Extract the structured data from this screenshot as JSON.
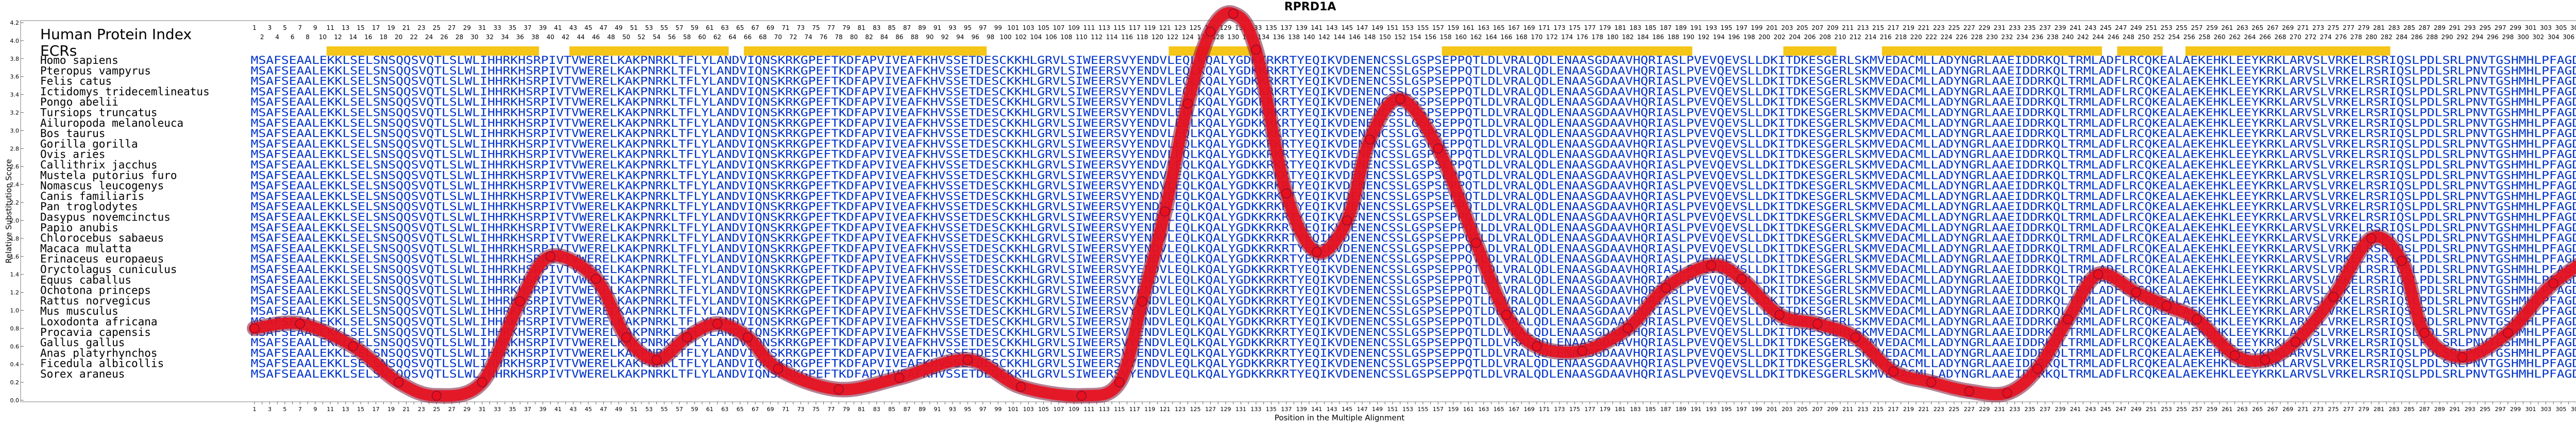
{
  "chart_data": {
    "type": "line",
    "title": "RPRD1A",
    "xlabel": "Position in the Multiple Alignment",
    "ylabel": "Relative Substitution Score",
    "ylim": [
      0,
      4.2
    ],
    "xlim": [
      1,
      312
    ],
    "y_ticks": [
      "0.0",
      "0.2",
      "0.4",
      "0.6",
      "0.8",
      "1.0",
      "1.2",
      "1.4",
      "1.6",
      "1.8",
      "2.0",
      "2.2",
      "2.4",
      "2.6",
      "2.8",
      "3.0",
      "3.2",
      "3.4",
      "3.6",
      "3.8",
      "4.0",
      "4.2"
    ],
    "grid": false,
    "legend": "none",
    "line_color": "#e8101e",
    "index_header": "Human Protein Index",
    "ecr_label": "ECRs",
    "ecr_color": "#f5c518",
    "ecr_regions": [
      [
        11,
        38
      ],
      [
        43,
        63
      ],
      [
        66,
        97
      ],
      [
        122,
        133
      ],
      [
        158,
        190
      ],
      [
        203,
        209
      ],
      [
        216,
        244
      ],
      [
        247,
        252
      ],
      [
        256,
        282
      ]
    ],
    "series": [
      {
        "x": [
          1,
          7,
          14,
          20,
          25,
          31,
          36,
          40,
          46,
          50,
          54,
          58,
          62,
          66,
          70,
          78,
          86,
          95,
          102,
          110,
          115,
          118,
          121,
          124,
          127,
          130,
          133,
          137,
          141,
          145,
          148,
          152,
          157,
          162,
          166,
          170,
          176,
          182,
          187,
          193,
          197,
          202,
          207,
          212,
          217,
          222,
          227,
          232,
          236,
          240,
          244,
          249,
          253,
          257,
          262,
          266,
          270,
          275,
          280,
          284,
          287,
          292,
          298,
          304,
          312
        ],
        "y": [
          0.8,
          0.85,
          0.6,
          0.2,
          0.05,
          0.2,
          1.1,
          1.6,
          1.35,
          0.7,
          0.45,
          0.7,
          0.85,
          0.7,
          0.35,
          0.12,
          0.25,
          0.45,
          0.15,
          0.05,
          0.2,
          1.1,
          2.1,
          3.3,
          4.1,
          4.3,
          3.9,
          2.3,
          1.65,
          2.0,
          2.9,
          3.35,
          2.8,
          1.75,
          0.95,
          0.6,
          0.55,
          0.8,
          1.25,
          1.5,
          1.35,
          0.95,
          0.85,
          0.7,
          0.32,
          0.2,
          0.1,
          0.08,
          0.35,
          0.9,
          1.4,
          1.2,
          1.05,
          0.9,
          0.5,
          0.45,
          0.65,
          1.15,
          1.8,
          1.55,
          0.75,
          0.48,
          0.75,
          1.3,
          1.75
        ]
      }
    ],
    "species": [
      "Homo sapiens",
      "Pteropus vampyrus",
      "Felis catus",
      "Ictidomys tridecemlineatus",
      "Pongo abelii",
      "Tursiops truncatus",
      "Ailuropoda melanoleuca",
      "Bos taurus",
      "Gorilla gorilla",
      "Ovis aries",
      "Callithrix jacchus",
      "Mustela putorius furo",
      "Nomascus leucogenys",
      "Canis familiaris",
      "Pan troglodytes",
      "Dasypus novemcinctus",
      "Papio anubis",
      "Chlorocebus sabaeus",
      "Macaca mulatta",
      "Erinaceus europaeus",
      "Oryctolagus cuniculus",
      "Equus caballus",
      "Ochotona princeps",
      "Rattus norvegicus",
      "Mus musculus",
      "Loxodonta africana",
      "Procavia capensis",
      "Gallus gallus",
      "Anas platyrhynchos",
      "Ficedula albicollis",
      "Sorex araneus"
    ],
    "sequences": [
      "MSAFSEAALEKKLSELSNSQQSVQTLSLWLIHHRKHSRPIVTVWEREL KAKPNRKLTFLYLANDVIQNSKRKGPEFTKDFAPVIVEAFKHVSSETDESCKKHLGRVLSIWEERSVYENDVLEQLKQALYGDKKRKRTYEQIKVDENENCSSLGSPSEPPQTLDLVRALQDLENAASGDAAVHQRIASLPVEVQEVSLLDKITDKESGERLSKMVEDACMLLADYNGRLAAEIDDRKQLTRMLADFLRCQKEALAEKEHKLEEYKRKLARVSLVRKELRSRIQSLPDLSRLPNVTGSHMHLPFAGDIYSED",
      "MSAFSEAALEKKLSELSNSQQSVQTLSLWLIHHRKHSRPIVTVWEREL KAKPNRKLTFLYLANDVIQNSKRKGPEFTKDFAPVIVEAFKHVSSETDESCKKHLGRVLSIWEERSVYENDVLEQLKQALYGDKKRKRTYEQIKVDENENCSSLGSPSEPPQTLDLVRALQDLENAASGDAAVHQRIASLPVEVQEVSLLDKITDKESGERLSKMVEDACMLLADYNGRLAAEIDDRKQLTRMLADFLRCQKEALAEKEHKLEEYKRKLARVSLVRKELRSRIQSLPDLSRLPNVTGSHMHLPFAGDIYSED",
      "MSAFSEAALEKKLSELSNSQQSVQTLSLWLIHHRKHSRPIVTVWEREL KAKPNRKLTFLYLANDVIQNSKRKGPEFTKDFAPVIVEAFKHVSSETDESCKKHLGRVLSIWEERSVYENDVLEQLKQALYGDKKRKRTYEQIKVDENENCSSLGSPSEPPQTLDLVRALQDLENAASGDAAVHQRIASLPVEVQEVSLLDKITDKESGERLSKMVEDACMLLADYNGRLAAEIDDRKQLTRMLADFLRCQKEALAEKEHKLEEYKRKLARVSLVRKELRSRIQSLPDLSRLPNVTGSHMHLPFAGDIYSED",
      "MSAFSEAALEKKLSELSNSQQSVQTLSLWLIHHRKHSRPIVTVWEREL KAKPNRKLTFLYLANDVIQNSKRKGPEFTKDFAPVIVEAFKHVSSETDESCKKHLGRVLSIWEERSVYENDVLEQLKQALYGDKKRKRTYEQIKVDENENCSSLGSPSEPPQTLDLVRALQDLENAASGDAAVHQRIASLPVEVQEVSLLDKITDKESGERLSKMVEDACMLLADYNGRLAAEIDDRKQLTRMLADFLRCQKEALAEKEHKLEEYKRKLARVSLVRKELRSRIQSLPDLSRLPNVTGSHMHLPFAGDIYSED",
      "MSAFSEAALEKKLSELSNSQQSVQTLSLWLIHHRKHSRPIVTVWEREL KAKPNRKLTFLYLANDVIQNSKRKGPEFTKDFAPVIVEAFKHVSSETDESCKKHLGRVLSIWEERSVYENDVLEQLKQALYGDKKRKRTYEQIKVDENENCSSLGSPSEPPQTLDLVRALQDLENAASGDAAVHQRIASLPVEVQEVSLLDKITDKESGERLSKMVEDACMLLADYNGRLAAEIDDRKQLTRMLADFLRCQKEALAEKEHKLEEYKRKLARVSLVRKELRSRIQSLPDLSRLPNVTGSHMHLPFAGDIYSED",
      "MSAFSEAALEKKLSELSNSQQSVQTLSLWLIHHRKHSRPIVTVWEREL KAKPNRKLTFLYLANDVIQNSKRKGPEFTKDFAPVIVEAFKHVSSETDESCKKHLGRVLSIWEERSVYENDVLEQLKQALYGDKKRKRTYEQIKVDENENCSSLGSPSEPPQTLDLVRALQDLENAASGDAAVHQRIASLPVEVQEVSLLDKITDKESGERLSKMVEDACMLLADYNGRLAAEIDDRKQLTRMLADFLRCQKEALAEKEHKLEEYKRKLARVSLVRKELRSRIQSLPDLSRLPNVTGSHMHLPFAGDIYSED",
      "MSAFSEAALEKKLSELSNSQQSVQTLSLWLIHHRKHSRPIVTVWEREL KAKPNRKLTFLYLANDVIQNSKRKGPEFTKDFAPVIVEAFKHVSSETDESCKKHLGRVLSIWEERSVYENDVLEQLKQALYGDKKRKRTYEQIKVDENENCSSLGSPSEPPQTLDLVRALQDLENAASGDAAVHQRIASLPVEVQEVSLLDKITDKESGERLSKMVEDACMLLADYNGRLAAEIDDRKQLTRMLADFLRCQKEALAEKEHKLEEYKRKLARVSLVRKELRSRIQSLPDLSRLPNVTGSHMHLPFAGDIYSED",
      "MSAFSEAALEKKLSELSNSQQSVQTLSLWLIHHRKHSRPIVTVWEREL KAKPNRKLTFLYLANDVIQNSKRKGPEFTKDFAPVIVEAFKHVSSETDESCKKHLGRVLSIWEERSVYENDVLEQLKQALYGDKKRKRTYEQIKVDENENCSSLGSPSEPPQTLDLVRALQDLENAASGDAAVHQRIASLPVEVQEVSLLDKITDKESGERLSKMVEDACMLLADYNGRLAAEIDDRKQLTRMLADFLRCQKEALAEKEHKLEEYKRKLARVSLVRKELRSRIQSLPDLSRLPNVTGSHMHLPFAGDIYSED",
      "MSAFSEAALEKKLSELSNSQQSVQTLSLWLIHHRKHSRPIVTVWEREL KAKPNRKLTFLYLANDVIQNSKRKGPEFTKDFAPVIVEAFKHVSSETDESCKKHLGRVLSIWEERSVYENDVLEQLKQALYGDKKRKRTYEQIKVDENENCSSLGSPSEPPQTLDLVRALQDLENAASGDAAVHQRIASLPVEVQEVSLLDKITDKESGERLSKMVEDACMLLADYNGRLAAEIDDRKQLTRMLADFLRCQKEALAEKEHKLEEYKRKLARVSLVRKELRSRIQSLPDLSRLPNVTGSHMHLPFAGDIYSED",
      "MSAFSEAALEKKLSELSNSQQSVQTLSLWLIHHRKHSRPIVTVWEREL KAKPNRKLTFLYLANDVIQNSKRKGPEFTKDFAPVIVEAFKHVSSETDESCKKHLGRVLSIWEERSVYENDVLEQLKQALYGDKKRKRTYEQIKVDENENCSSLGSPSEPPQTLDLVRALQDLENAASGDAAVHQRIASLPVEVQEVSLLDKITDKESGERLSKMVEDACMLLADYNGRLAAEIDDRKQLTRMLADFLRCQKEALAEKEHKLEEYKRKLARVSLVRKELRSRIQSLPDLSRLPNVTGSHMHLPFAGDIYSED",
      "MSAFSEAALEKKLSELSNSQQSVQTLSLWLIHHRKHSRPIVTVWEREL KAKPNRKLTFLYLANDVIQNSKRKGPEFTKDFAPVIVEAFKHVSSETDESCKKHLGRVLSIWEERSVYENDVLEQLKQALYGDKKRKRTYEQIKVDENENCSSLGSPSEPPQTLDLVRALQDLENAASGDAAVHQRIASLPVEVQEVSLLDKITDKESGERLSKMVEDACMLLADYNGRLAAEIDDRKQLTRMLADFLRCQKEALAEKEHKLEEYKRKLARVSLVRKELRSRIQSLPDLSRLPNVTGSHMHLPFAGDIYSED",
      "MSAFSEAALEKKLSELSNSQQSVQTLSLWLIHHRKHSRPIVTVWEREL KAKPNRKLTFLYLANDVIQNSKRKGPEFTKDFAPVIVEAFKHVSSETDESCKKHLGRVLSIWEERSVYENDVLEQLKQALYGDKKRKRTYEQIKVDENENCSSLGSPSEPPQTLDLVRALQDLENAASGDAAVHQRIASLPVEVQEVSLLDKITDKESGERLSKMVEDACMLLADYNGRLAAEIDDRKQLTRMLADFLRCQKEALAEKEHKLEEYKRKLARVSLVRKELRSRIQSLPDLSRLPNVTGSHMHLPFAGDIYSED",
      "MSAFSEAALEKKLSELSNSQQSVQTLSLWLIHHRKHSRPIVTVWEREL KAKPNRKLTFLYLANDVIQNSKRKGPEFTKDFAPVIVEAFKHVSSETDESCKKHLGRVLSIWEERSVYENDVLEQLKQALYGDKKRKRTYEQIKVDENENCSSLGSPSEPPQTLDLVRALQDLENAASGDAAVHQRIASLPVEVQEVSLLDKITDKESGERLSKMVEDACMLLADYNGRLAAEIDDRKQLTRMLADFLRCQKEALAEKEHKLEEYKRKLARVSLVRKELRSRIQSLPDLSRLPNVTGSHMHLPFAGDIYSED",
      "MSAFSEAALEKKLSELSNSQQSVQTLSLWLIHHRKHSRPIVTVWEREL KAKPNRKLTFLYLANDVIQNSKRKGPEFTKDFAPVIVEAFKHVSSETDESCKKHLGRVLSIWEERSVYENDVLEQLKQALYGDKKRKRTYEQIKVDENENCSSLGSPSEPPQTLDLVRALQDLENAASGDAAVHQRIASLPVEVQEVSLLDKITDKESGERLSKMVEDACMLLADYNGRLAAEIDDRKQLTRMLADFLRCQKEALAEKEHKLEEYKRKLARVSLVRKELRSRIQSLPDLSRLPNVTGSHMHLPFAGDIYSED",
      "MSAFSEAALEKKLSELSNSQQSVQTLSLWLIHHRKHSRPIVTVWEREL KAKPNRKLTFLYLANDVIQNSKRKGPEFTKDFAPVIVEAFKHVSSETDESCKKHLGRVLSIWEERSVYENDVLEQLKQALYGDKKRKRTYEQIKVDENENCSSLGSPSEPPQTLDLVRALQDLENAASGDAAVHQRIASLPVEVQEVSLLDKITDKESGERLSKMVEDACMLLADYNGRLAAEIDDRKQLTRMLADFLRCQKEALAEKEHKLEEYKRKLARVSLVRKELRSRIQSLPDLSRLPNVTGSHMHLPFAGDIYSED",
      "MSAFSEAALEKKLSELSNSQQSVQTLSLWLIHHRKHSRPIVTVWEREL KAKPNRKLTFLYLANDVIQNSKRKGPEFTKDFAPVIVEAFKHVSSETDESCKKHLGRVLSIWEERSVYENDVLEQLKQALYGDKKRKRTYEQIKVDENENCSSLGSPSEPPQTLDLVRALQDLENAASGDAAVHQRIASLPVEVQEVSLLDKITDKESGERLSKMVEDACMLLADYNGRLAAEIDDRKQLTRMLADFLRCQKEALAEKEHKLEEYKRKLARVSLVRKELRSRIQSLPDLSRLPNVTGSHMHLPFAGDIYSED",
      "MSAFSEAALEKKLSELSNSQQSVQTLSLWLIHHRKHSRPIVTVWEREL KAKPNRKLTFLYLANDVIQNSKRKGPEFTKDFAPVIVEAFKHVSSETDESCKKHLGRVLSIWEERSVYENDVLEQLKQALYGDKKRKRTYEQIKVDENENCSSLGSPSEPPQTLDLVRALQDLENAASGDAAVHQRIASLPVEVQEVSLLDKITDKESGERLSKMVEDACMLLADYNGRLAAEIDDRKQLTRMLADFLRCQKEALAEKEHKLEEYKRKLARVSLVRKELRSRIQSLPDLSRLPNVTGSHMHLPFAGDIYSED",
      "MSAFSEAALEKKLSELSNSQQSVQTLSLWLIHHRKHSRPIVTVWEREL KAKPNRKLTFLYLANDVIQNSKRKGPEFTKDFAPVIVEAFKHVSSETDESCKKHLGRVLSIWEERSVYENDVLEQLKQALYGDKKRKRTYEQIKVDENENCSSLGSPSEPPQTLDLVRALQDLENAASGDAAVHQRIASLPVEVQEVSLLDKITDKESGERLSKMVEDACMLLADYNGRLAAEIDDRKQLTRMLADFLRCQKEALAEKEHKLEEYKRKLARVSLVRKELRSRIQSLPDLSRLPNVTGSHMHLPFAGDIYSED",
      "MSAFSEAALEKKLSELSNSQQSVQTLSLWLIHHRKHSRPIVTVWEREL KAKPNRKLTFLYLANDVIQNSKRKGPEFTKDFAPVIVEAFKHVSSETDESCKKHLGRVLSIWEERSVYENDVLEQLKQALYGDKKRKRTYEQIKVDENENCSSLGSPSEPPQTLDLVRALQDLENAASGDAAVHQRIASLPVEVQEVSLLDKITDKESGERLSKMVEDACMLLADYNGRLAAEIDDRKQLTRMLADFLRCQKEALAEKEHKLEEYKRKLARVSLVRKELRSRIQSLPDLSRLPNVTGSHMHLPFAGDIYSED",
      "MSAFSEAALEKKLSELSNSQQSVQTLSLWLIHHRKHSRPIVTVWEREL KAKPNRKLTFLYLANDVIQNSKRKGPEFTKDFAPVIVEAFKHVSSETDESCKKHLGRVLSIWEERSVYENDVLEQLKQALYGDKKRKRTYEQIKVDENENCSSLGSPSEPPQTLDLVRALQDLENAASGDAAVHQRIASLPVEVQEVSLLDKITDKESGERLSKMVEDACMLLADYNGRLAAEIDDRKQLTRMLADFLRCQKEALAEKEHKLEEYKRKLARVSLVRKELRSRIQSLPDLSRLPNVTGSHMHLPFAGDIYSED",
      "MSAFSEAALEKKLSELSNSQQSVQTLSLWLIHHRKHSRPIVTVWEREL KAKPNRKLTFLYLANDVIQNSKRKGPEFTKDFAPVIVEAFKHVSSETDESCKKHLGRVLSIWEERSVYENDVLEQLKQALYGDKKRKRTYEQIKVDENENCSSLGSPSEPPQTLDLVRALQDLENAASGDAAVHQRIASLPVEVQEVSLLDKITDKESGERLSKMVEDACMLLADYNGRLAAEIDDRKQLTRMLADFLRCQKEALAEKEHKLEEYKRKLARVSLVRKELRSRIQSLPDLSRLPNVTGSHMHLPFAGDIYSED",
      "MSAFSEAALEKKLSELSNSQQSVQTLSLWLIHHRKHSRPIVTVWEREL KAKPNRKLTFLYLANDVIQNSKRKGPEFTKDFAPVIVEAFKHVSSETDESCKKHLGRVLSIWEERSVYENDVLEQLKQALYGDKKRKRTYEQIKVDENENCSSLGSPSEPPQTLDLVRALQDLENAASGDAAVHQRIASLPVEVQEVSLLDKITDKESGERLSKMVEDACMLLADYNGRLAAEIDDRKQLTRMLADFLRCQKEALAEKEHKLEEYKRKLARVSLVRKELRSRIQSLPDLSRLPNVTGSHMHLPFAGDIYSED",
      "MSAFSEAALEKKLSELSNSQQSVQTLSLWLIHHRKHSRPIVTVWEREL KAKPNRKLTFLYLANDVIQNSKRKGPEFTKDFAPVIVEAFKHVSSETDESCKKHLGRVLSIWEERSVYENDVLEQLKQALYGDKKRKRTYEQIKVDENENCSSLGSPSEPPQTLDLVRALQDLENAASGDAAVHQRIASLPVEVQEVSLLDKITDKESGERLSKMVEDACMLLADYNGRLAAEIDDRKQLTRMLADFLRCQKEALAEKEHKLEEYKRKLARVSLVRKELRSRIQSLPDLSRLPNVTGSHMHLPFAGDIYSED",
      "MSAFSEAALEKKLSELSNSQQSVQTLSLWLIHHRKHSRPIVTVWEREL KAKPNRKLTFLYLANDVIQNSKRKGPEFTKDFAPVIVEAFKHVSSETDESCKKHLGRVLSIWEERSVYENDVLEQLKQALYGDKKRKRTYEQIKVDENENCSSLGSPSEPPQTLDLVRALQDLENAASGDAAVHQRIASLPVEVQEVSLLDKITDKESGERLSKMVEDACMLLADYNGRLAAEIDDRKQLTRMLADFLRCQKEALAEKEHKLEEYKRKLARVSLVRKELRSRIQSLPDLSRLPNVTGSHMHLPFAGDIYSED",
      "MSAFSEAALEKKLSELSNSQQSVQTLSLWLIHHRKHSRPIVTVWEREL KAKPNRKLTFLYLANDVIQNSKRKGPEFTKDFAPVIVEAFKHVSSETDESCKKHLGRVLSIWEERSVYENDVLEQLKQALYGDKKRKRTYEQIKVDENENCSSLGSPSEPPQTLDLVRALQDLENAASGDAAVHQRIASLPVEVQEVSLLDKITDKESGERLSKMVEDACMLLADYNGRLAAEIDDRKQLTRMLADFLRCQKEALAEKEHKLEEYKRKLARVSLVRKELRSRIQSLPDLSRLPNVTGSHMHLPFAGDIYSED",
      "MSAFSEAALEKKLSELSNSQQSVQTLSLWLIHHRKHSRPIVTVWEREL KAKPNRKLTFLYLANDVIQNSKRKGPEFTKDFAPVIVEAFKHVSSETDESCKKHLGRVLSIWEERSVYENDVLEQLKQALYGDKKRKRTYEQIKVDENENCSSLGSPSEPPQTLDLVRALQDLENAASGDAAVHQRIASLPVEVQEVSLLDKITDKESGERLSKMVEDACMLLADYNGRLAAEIDDRKQLTRMLADFLRCQKEALAEKEHKLEEYKRKLARVSLVRKELRSRIQSLPDLSRLPNVTGSHMHLPFAGDIYSED",
      "MSAFSEAALEKKLSELSNSQQSVQTLSLWLIHHRKHSRPIVTVWEREL KAKPNRKLTFLYLANDVIQNSKRKGPEFTKDFAPVIVEAFKHVSSETDESCKKHLGRVLSIWEERSVYENDVLEQLKQALYGDKKRKRTYEQIKVDENENCSSLGSPSEPPQTLDLVRALQDLENAASGDAAVHQRIASLPVEVQEVSLLDKITDKESGERLSKMVEDACMLLADYNGRLAAEIDDRKQLTRMLADFLRCQKEALAEKEHKLEEYKRKLARVSLVRKELRSRIQSLPDLSRLPNVTGSHMHLPFAGDIYSED",
      "MSAFSEAALEKKLSELSNSQQSVQTLSLWLIHHRKHSRPIVTVWEREL KAKPNRKLTFLYLANDVIQNSKRKGPEFTKDFAPVIVEAFKHVSSETDESCKKHLGRVLSIWEERSVYENDVLEQLKQALYGDKKRKRTYEQIKVDENENCSSLGSPSEPPQTLDLVRALQDLENAASGDAAVHQRIASLPVEVQEVSLLDKITDKESGERLSKMVEDACMLLADYNGRLAAEIDDRKQLTRMLADFLRCQKEALAEKEHKLEEYKRKLARVSLVRKELRSRIQSLPDLSRLPNVTGSHMHLPFAGDIYSED",
      "MSAFSEAALEKKLSELSNSQQSVQTLSLWLIHHRKHSRPIVTVWEREL KAKPNRKLTFLYLANDVIQNSKRKGPEFTKDFAPVIVEAFKHVSSETDESCKKHLGRVLSIWEERSVYENDVLEQLKQALYGDKKRKRTYEQIKVDENENCSSLGSPSEPPQTLDLVRALQDLENAASGDAAVHQRIASLPVEVQEVSLLDKITDKESGERLSKMVEDACMLLADYNGRLAAEIDDRKQLTRMLADFLRCQKEALAEKEHKLEEYKRKLARVSLVRKELRSRIQSLPDLSRLPNVTGSHMHLPFAGDIYSED",
      "MSAFSEAALEKKLSELSNSQQSVQTLSLWLIHHRKHSRPIVTVWEREL KAKPNRKLTFLYLANDVIQNSKRKGPEFTKDFAPVIVEAFKHVSSETDESCKKHLGRVLSIWEERSVYENDVLEQLKQALYGDKKRKRTYEQIKVDENENCSSLGSPSEPPQTLDLVRALQDLENAASGDAAVHQRIASLPVEVQEVSLLDKITDKESGERLSKMVEDACMLLADYNGRLAAEIDDRKQLTRMLADFLRCQKEALAEKEHKLEEYKRKLARVSLVRKELRSRIQSLPDLSRLPNVTGSHMHLPFAGDIYSED",
      "MSAFSEAALEKKLSELSNSQQSVQTLSLWLIHHRKHSRPIVTVWEREL KAKPNRKLTFLYLANDVIQNSKRKGPEFTKDFAPVIVEAFKHVSSETDESCKKHLGRVLSIWEERSVYENDVLEQLKQALYGDKKRKRTYEQIKVDENENCSSLGSPSEPPQTLDLVRALQDLENAASGDAAVHQRIASLPVEVQEVSLLDKITDKESGERLSKMVEDACMLLADYNGRLAAEIDDRKQLTRMLADFLRCQKEALAEKEHKLEEYKRKLARVSLVRKELRSRIQSLPDLSRLPNVTGSHMHLPFAGDIYSED"
    ]
  }
}
